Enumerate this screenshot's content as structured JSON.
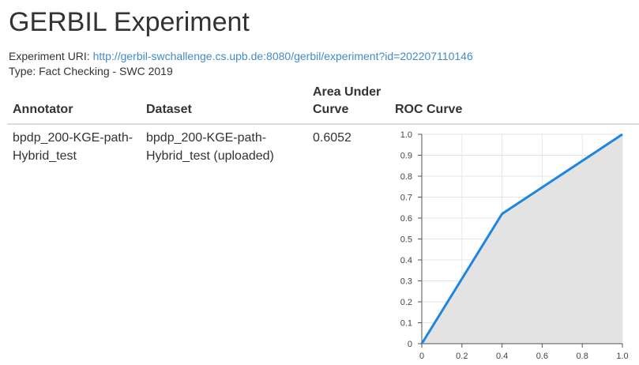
{
  "page": {
    "title": "GERBIL Experiment",
    "uri_label": "Experiment URI:",
    "uri": "http://gerbil-swchallenge.cs.upb.de:8080/gerbil/experiment?id=202207110146",
    "type_text": "Type: Fact Checking - SWC 2019"
  },
  "table": {
    "headers": {
      "annotator": "Annotator",
      "dataset": "Dataset",
      "auc_line1": "Area Under",
      "auc_line2": "Curve",
      "roc": "ROC Curve"
    },
    "rows": [
      {
        "annotator_line1": "bpdp_200-KGE-path-",
        "annotator_line2": "Hybrid_test",
        "dataset_line1": "bpdp_200-KGE-path-",
        "dataset_line2": "Hybrid_test (uploaded)",
        "auc": "0.6052"
      }
    ]
  },
  "chart_data": {
    "type": "area",
    "x": [
      0,
      0.4,
      1.0
    ],
    "series": [
      {
        "values": [
          0,
          0.62,
          1.0
        ]
      }
    ],
    "xlim": [
      0,
      1.0
    ],
    "ylim": [
      0,
      1.0
    ],
    "x_ticks": [
      "0",
      "0.2",
      "0.4",
      "0.6",
      "0.8",
      "1.0"
    ],
    "y_ticks": [
      "0",
      "0.1",
      "0.2",
      "0.3",
      "0.4",
      "0.5",
      "0.6",
      "0.7",
      "0.8",
      "0.9",
      "1.0"
    ],
    "grid": true,
    "line_color": "#1f86e0",
    "fill_color": "#e3e3e3",
    "title": "",
    "xlabel": "",
    "ylabel": ""
  }
}
